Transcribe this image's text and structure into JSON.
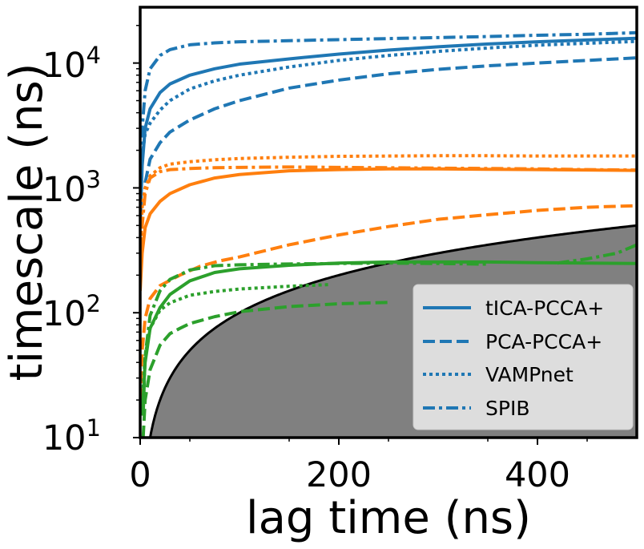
{
  "chart_data": {
    "type": "line",
    "title": "",
    "xlabel": "lag time (ns)",
    "ylabel": "timescale (ns)",
    "xlim": [
      0,
      500
    ],
    "ylim": [
      10,
      28000
    ],
    "yscale": "log",
    "x_ticks": [
      0,
      200,
      400
    ],
    "x_tick_labels": [
      "0",
      "200",
      "400"
    ],
    "y_ticks": [
      10,
      100,
      1000,
      10000
    ],
    "y_tick_labels": [
      {
        "base": "10",
        "exp": "1"
      },
      {
        "base": "10",
        "exp": "2"
      },
      {
        "base": "10",
        "exp": "3"
      },
      {
        "base": "10",
        "exp": "4"
      }
    ],
    "grid": false,
    "legend_position": "lower-right",
    "legend": [
      {
        "label": "tICA-PCCA+",
        "style": "solid"
      },
      {
        "label": "PCA-PCCA+",
        "style": "dashed"
      },
      {
        "label": "VAMPnet",
        "style": "dotted"
      },
      {
        "label": "SPIB",
        "style": "dashdot"
      }
    ],
    "shaded_region": {
      "description": "timescale below lag time",
      "boundary": "y = x",
      "color": "#808080"
    },
    "colors": {
      "blue": "#1f77b4",
      "orange": "#ff7f0e",
      "green": "#2ca02c",
      "shade": "#808080"
    },
    "series": [
      {
        "name": "tICA-PCCA+ process 1",
        "method": "tICA-PCCA+",
        "color": "blue",
        "style": "solid",
        "x": [
          0,
          2,
          5,
          10,
          20,
          30,
          50,
          75,
          100,
          150,
          200,
          250,
          300,
          350,
          400,
          450,
          500
        ],
        "y": [
          500,
          1500,
          3000,
          4300,
          5800,
          6800,
          8000,
          9000,
          9800,
          10800,
          11800,
          12700,
          13500,
          14200,
          14800,
          15300,
          15800
        ]
      },
      {
        "name": "PCA-PCCA+ process 1",
        "method": "PCA-PCCA+",
        "color": "blue",
        "style": "dashed",
        "x": [
          5,
          10,
          20,
          30,
          50,
          75,
          100,
          150,
          200,
          250,
          300,
          350,
          400,
          450,
          500
        ],
        "y": [
          1100,
          1700,
          2300,
          2800,
          3500,
          4300,
          5000,
          6300,
          7300,
          8200,
          8900,
          9500,
          10000,
          10500,
          11000
        ]
      },
      {
        "name": "VAMPnet process 1",
        "method": "VAMPnet",
        "color": "blue",
        "style": "dotted",
        "x": [
          0,
          2,
          5,
          10,
          20,
          30,
          50,
          75,
          100,
          150,
          200,
          250,
          300,
          350,
          400,
          450,
          500
        ],
        "y": [
          1000,
          1800,
          2700,
          3300,
          4200,
          5000,
          6200,
          7200,
          8000,
          9300,
          10500,
          11500,
          12400,
          13200,
          13900,
          14400,
          14900
        ]
      },
      {
        "name": "SPIB process 1",
        "method": "SPIB",
        "color": "blue",
        "style": "dashdot",
        "x": [
          0,
          2,
          5,
          10,
          20,
          30,
          50,
          75,
          100,
          150,
          200,
          250,
          300,
          350,
          400,
          450,
          500
        ],
        "y": [
          700,
          3000,
          6000,
          9000,
          11500,
          12800,
          14000,
          14500,
          14800,
          15100,
          15400,
          15700,
          16000,
          16300,
          16700,
          17000,
          17500
        ]
      },
      {
        "name": "tICA-PCCA+ process 2",
        "method": "tICA-PCCA+",
        "color": "orange",
        "style": "solid",
        "x": [
          0,
          2,
          5,
          10,
          20,
          30,
          50,
          75,
          100,
          150,
          200,
          250,
          300,
          350,
          400,
          450,
          500
        ],
        "y": [
          150,
          300,
          480,
          620,
          780,
          900,
          1060,
          1200,
          1280,
          1370,
          1400,
          1420,
          1420,
          1410,
          1400,
          1390,
          1380
        ]
      },
      {
        "name": "PCA-PCCA+ process 2",
        "method": "PCA-PCCA+",
        "color": "orange",
        "style": "dashed",
        "x": [
          0,
          2,
          5,
          10,
          20,
          40,
          60,
          80,
          100,
          150,
          200,
          250,
          300,
          350,
          400,
          450,
          500
        ],
        "y": [
          20,
          50,
          90,
          130,
          165,
          200,
          235,
          260,
          280,
          350,
          420,
          490,
          560,
          610,
          660,
          700,
          720
        ]
      },
      {
        "name": "VAMPnet process 2",
        "method": "VAMPnet",
        "color": "orange",
        "style": "dotted",
        "x": [
          0,
          2,
          5,
          10,
          20,
          30,
          50,
          75,
          100,
          150,
          200,
          250,
          300,
          350,
          400,
          450,
          500
        ],
        "y": [
          300,
          700,
          1000,
          1250,
          1450,
          1550,
          1620,
          1680,
          1720,
          1760,
          1790,
          1800,
          1810,
          1810,
          1800,
          1800,
          1800
        ]
      },
      {
        "name": "SPIB process 2",
        "method": "SPIB",
        "color": "orange",
        "style": "dashdot",
        "x": [
          0,
          2,
          5,
          10,
          20,
          30,
          50,
          75,
          100,
          150,
          200,
          250,
          300,
          350,
          400,
          450,
          500
        ],
        "y": [
          200,
          500,
          900,
          1200,
          1350,
          1400,
          1430,
          1450,
          1460,
          1470,
          1460,
          1450,
          1440,
          1430,
          1420,
          1400,
          1390
        ]
      },
      {
        "name": "tICA-PCCA+ process 3",
        "method": "tICA-PCCA+",
        "color": "green",
        "style": "solid",
        "x": [
          2,
          5,
          10,
          20,
          30,
          50,
          75,
          100,
          150,
          200,
          250,
          300,
          350,
          400,
          450,
          500
        ],
        "y": [
          15,
          40,
          75,
          110,
          140,
          180,
          210,
          225,
          240,
          250,
          255,
          255,
          255,
          252,
          250,
          248
        ]
      },
      {
        "name": "PCA-PCCA+ process 3",
        "method": "PCA-PCCA+",
        "color": "green",
        "style": "dashed",
        "x": [
          3,
          5,
          10,
          20,
          30,
          40,
          50,
          75,
          100,
          150,
          200,
          250
        ],
        "y": [
          10,
          20,
          35,
          55,
          68,
          75,
          82,
          93,
          102,
          112,
          118,
          121
        ]
      },
      {
        "name": "VAMPnet process 3",
        "method": "VAMPnet",
        "color": "green",
        "style": "dotted",
        "x": [
          3,
          5,
          10,
          20,
          30,
          50,
          75,
          100,
          150,
          190
        ],
        "y": [
          25,
          45,
          75,
          105,
          120,
          138,
          148,
          155,
          163,
          168
        ]
      },
      {
        "name": "SPIB process 3",
        "method": "SPIB",
        "color": "green",
        "style": "dashdot",
        "x": [
          3,
          5,
          10,
          20,
          30,
          50,
          75,
          100,
          150,
          200,
          250,
          300,
          350
        ],
        "y": [
          15,
          45,
          95,
          150,
          185,
          220,
          238,
          242,
          246,
          248,
          250,
          248,
          245
        ]
      },
      {
        "name": "SPIB process 3 (tail)",
        "method": "SPIB",
        "color": "green",
        "style": "dashdot",
        "x": [
          420,
          450,
          480,
          500
        ],
        "y": [
          250,
          270,
          300,
          350
        ]
      }
    ]
  }
}
